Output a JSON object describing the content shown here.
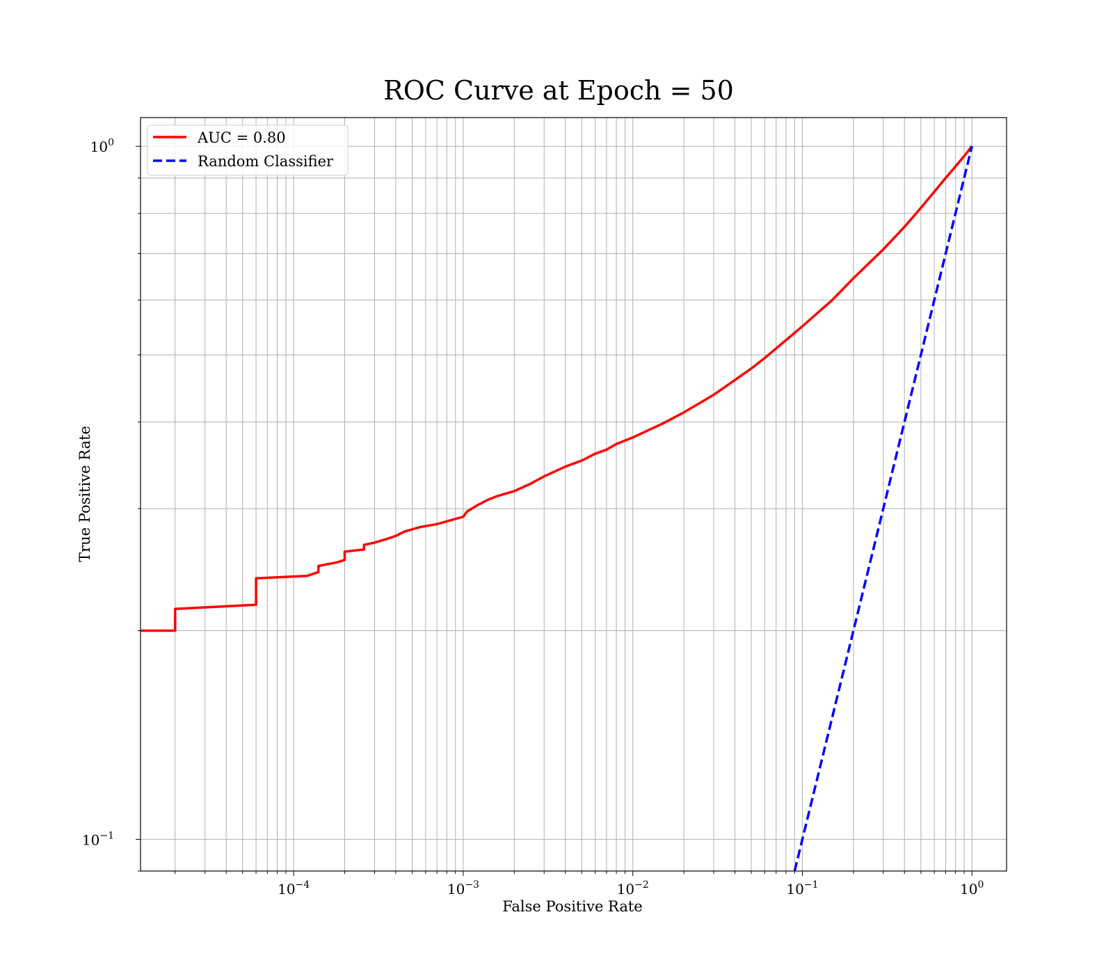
{
  "chart_data": {
    "type": "line",
    "title": "ROC Curve at Epoch = 50",
    "xlabel": "False Positive Rate",
    "ylabel": "True Positive Rate",
    "xscale": "log",
    "yscale": "log",
    "xlim": [
      1.25e-05,
      1.6
    ],
    "ylim": [
      0.09,
      1.1
    ],
    "grid": true,
    "legend_position": "upper-left",
    "x_ticks": [
      {
        "value": 0.0001,
        "base": "10",
        "exp": "−4"
      },
      {
        "value": 0.001,
        "base": "10",
        "exp": "−3"
      },
      {
        "value": 0.01,
        "base": "10",
        "exp": "−2"
      },
      {
        "value": 0.1,
        "base": "10",
        "exp": "−1"
      },
      {
        "value": 1,
        "base": "10",
        "exp": "0"
      }
    ],
    "y_ticks": [
      {
        "value": 0.1,
        "base": "10",
        "exp": "−1"
      },
      {
        "value": 1,
        "base": "10",
        "exp": "0"
      }
    ],
    "series": [
      {
        "name": "AUC = 0.80",
        "color": "#ff0000",
        "style": "solid",
        "x": [
          1.25e-05,
          2e-05,
          2e-05,
          6e-05,
          6e-05,
          0.00012,
          0.00014,
          0.00014,
          0.00018,
          0.0002,
          0.0002,
          0.00026,
          0.00026,
          0.0003,
          0.00035,
          0.0004,
          0.00045,
          0.00055,
          0.0007,
          0.0009,
          0.001,
          0.00105,
          0.0012,
          0.0014,
          0.0016,
          0.002,
          0.0025,
          0.003,
          0.004,
          0.005,
          0.006,
          0.007,
          0.008,
          0.01,
          0.015,
          0.02,
          0.03,
          0.04,
          0.05,
          0.06,
          0.08,
          0.1,
          0.15,
          0.2,
          0.3,
          0.4,
          0.5,
          0.6,
          0.7,
          0.8,
          0.9,
          1.0
        ],
        "y": [
          0.2,
          0.2,
          0.215,
          0.218,
          0.238,
          0.24,
          0.243,
          0.248,
          0.251,
          0.253,
          0.26,
          0.262,
          0.266,
          0.268,
          0.271,
          0.274,
          0.278,
          0.282,
          0.285,
          0.29,
          0.292,
          0.297,
          0.303,
          0.309,
          0.313,
          0.318,
          0.326,
          0.334,
          0.345,
          0.352,
          0.36,
          0.365,
          0.372,
          0.38,
          0.398,
          0.413,
          0.438,
          0.46,
          0.478,
          0.495,
          0.525,
          0.55,
          0.6,
          0.645,
          0.71,
          0.765,
          0.815,
          0.86,
          0.9,
          0.935,
          0.968,
          1.0
        ]
      },
      {
        "name": "Random Classifier",
        "color": "#0000ff",
        "style": "dashed",
        "x": [
          0.09,
          1.0
        ],
        "y": [
          0.09,
          1.0
        ]
      }
    ]
  }
}
